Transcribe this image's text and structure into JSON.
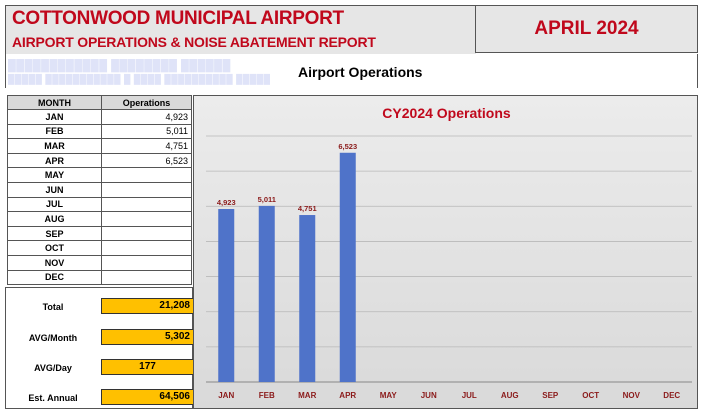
{
  "header": {
    "title": "COTTONWOOD MUNICIPAL AIRPORT",
    "subtitle": "AIRPORT OPERATIONS & NOISE ABATEMENT REPORT",
    "period": "APRIL 2024"
  },
  "section": {
    "title": "Airport Operations"
  },
  "table": {
    "col_month": "MONTH",
    "col_ops": "Operations",
    "rows": [
      {
        "month": "JAN",
        "ops": "4,923"
      },
      {
        "month": "FEB",
        "ops": "5,011"
      },
      {
        "month": "MAR",
        "ops": "4,751"
      },
      {
        "month": "APR",
        "ops": "6,523"
      },
      {
        "month": "MAY",
        "ops": ""
      },
      {
        "month": "JUN",
        "ops": ""
      },
      {
        "month": "JUL",
        "ops": ""
      },
      {
        "month": "AUG",
        "ops": ""
      },
      {
        "month": "SEP",
        "ops": ""
      },
      {
        "month": "OCT",
        "ops": ""
      },
      {
        "month": "NOV",
        "ops": ""
      },
      {
        "month": "DEC",
        "ops": ""
      }
    ]
  },
  "summary": {
    "total_label": "Total",
    "total": "21,208",
    "avg_month_label": "AVG/Month",
    "avg_month": "5,302",
    "avg_day_label": "AVG/Day",
    "avg_day": "177",
    "annual_label": "Est. Annual",
    "annual": "64,506"
  },
  "chart_data": {
    "type": "bar",
    "title": "CY2024 Operations",
    "categories": [
      "JAN",
      "FEB",
      "MAR",
      "APR",
      "MAY",
      "JUN",
      "JUL",
      "AUG",
      "SEP",
      "OCT",
      "NOV",
      "DEC"
    ],
    "values": [
      4923,
      5011,
      4751,
      6523,
      null,
      null,
      null,
      null,
      null,
      null,
      null,
      null
    ],
    "data_labels": [
      "4,923",
      "5,011",
      "4,751",
      "6,523",
      "",
      "",
      "",
      "",
      "",
      "",
      "",
      ""
    ],
    "ylim": [
      0,
      7000
    ],
    "grid": true,
    "legend": "none",
    "colors": {
      "bar": "#4f73c9",
      "title": "#c0081c",
      "data_label": "#8b1a1a",
      "tick_label": "#8b1a1a"
    }
  }
}
